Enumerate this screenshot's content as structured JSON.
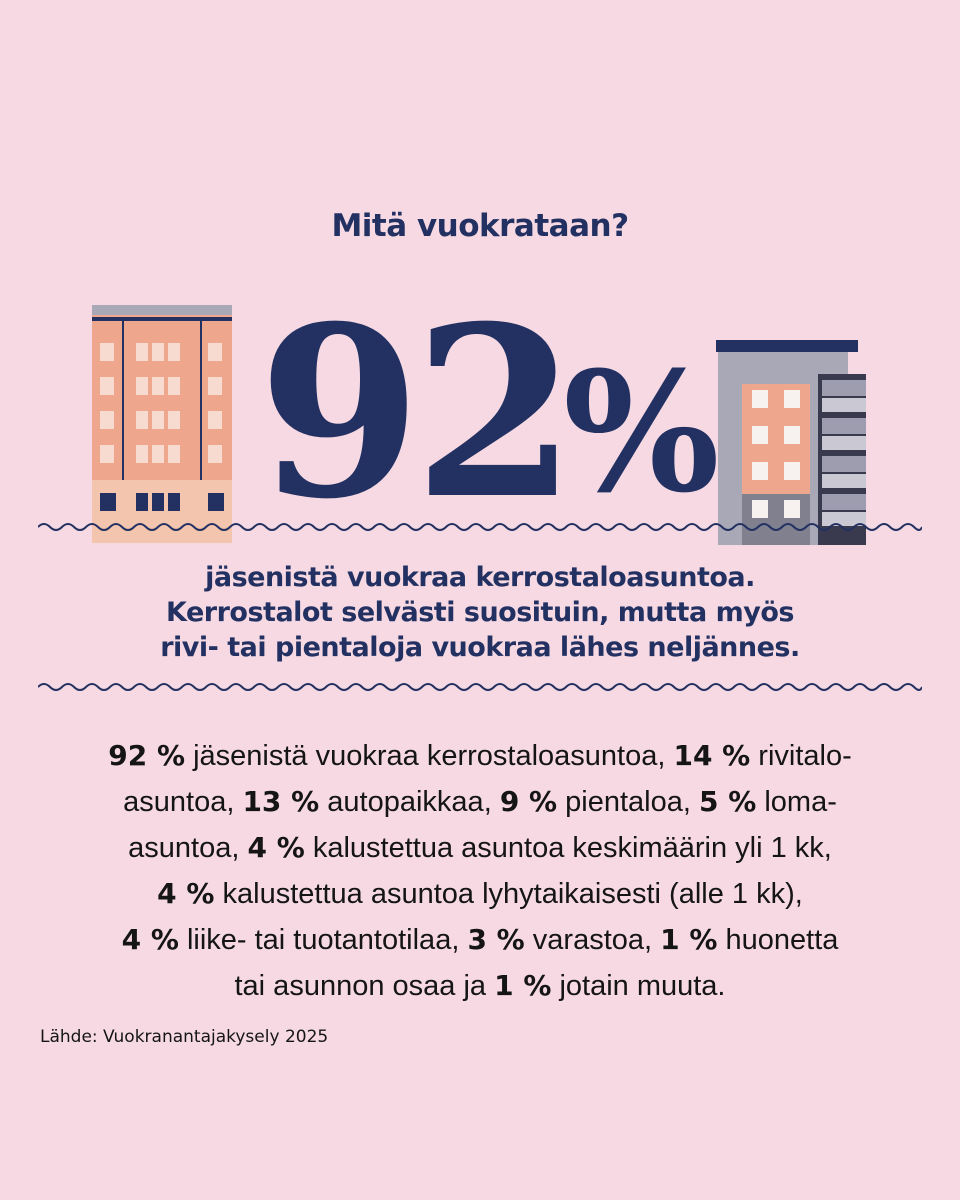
{
  "header": {
    "title": "Mitä vuokrataan?"
  },
  "headline": {
    "number": "92",
    "unit": "%"
  },
  "subtitle": {
    "lines": [
      "jäsenistä vuokraa kerrostaloasuntoa.",
      "Kerrostalot selvästi suosituin, mutta myös",
      "rivi- tai pientaloja vuokraa lähes neljännes."
    ]
  },
  "body": {
    "l1": {
      "p1": "92 %",
      "t1": " jäsenistä vuokraa kerrostaloasuntoa, ",
      "p2": "14 %",
      "t2": " rivitalo-"
    },
    "l2": {
      "t0": "asuntoa, ",
      "p1": "13 %",
      "t1": " autopaikkaa, ",
      "p2": "9 %",
      "t2": " pientaloa, ",
      "p3": "5 %",
      "t3": " loma-"
    },
    "l3": {
      "t0": "asuntoa, ",
      "p1": "4 %",
      "t1": " kalustettua asuntoa keskimäärin yli 1 kk,"
    },
    "l4": {
      "p1": "4 %",
      "t1": " kalustettua asuntoa lyhytaikaisesti (alle 1 kk),"
    },
    "l5": {
      "p1": "4 %",
      "t1": " liike- tai tuotantotilaa, ",
      "p2": "3 %",
      "t2": " varastoa, ",
      "p3": "1 %",
      "t3": " huonetta"
    },
    "l6": {
      "t0": "tai asunnon osaa ja ",
      "p1": "1 %",
      "t1": " jotain muuta."
    }
  },
  "footer": {
    "source": "Lähde: Vuokranantajakysely 2025"
  },
  "colors": {
    "background": "#f6d9e3",
    "navy": "#223162",
    "salmon": "#eea68c",
    "grey": "#a9a8b6"
  },
  "icons": [
    "brick-apartment-building-illustration",
    "modern-apartment-building-illustration",
    "wave-divider"
  ]
}
